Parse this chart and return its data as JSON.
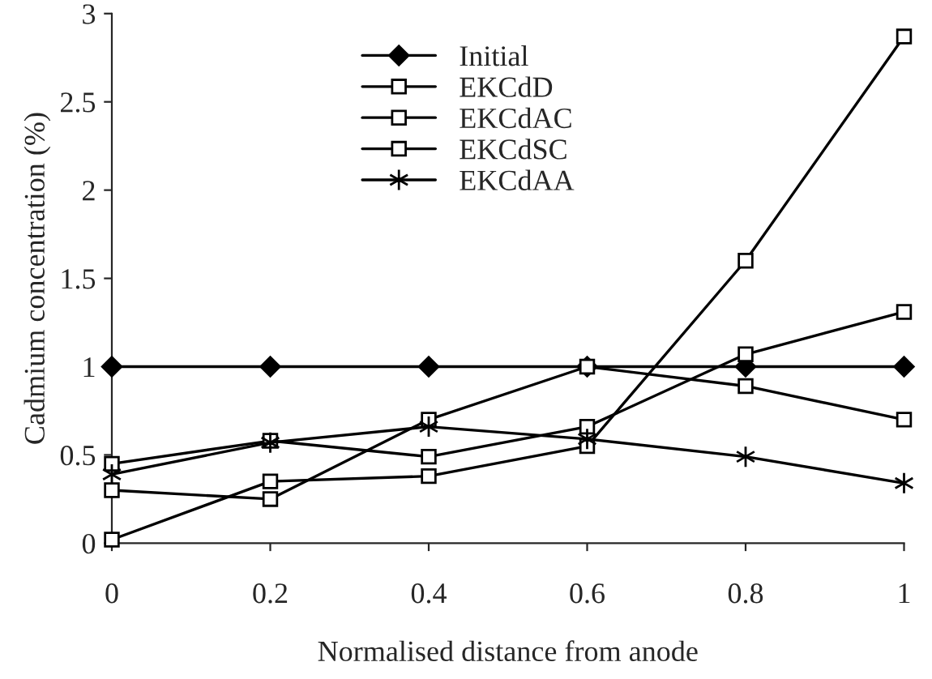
{
  "chart_data": {
    "type": "line",
    "xlabel": "Normalised distance from anode",
    "ylabel": "Cadmium concentration (%)",
    "x": [
      0,
      0.2,
      0.4,
      0.6,
      0.8,
      1
    ],
    "series": [
      {
        "name": "Initial",
        "color": "#000000",
        "marker": "diamond",
        "values": [
          1,
          1,
          1,
          1,
          1,
          1
        ]
      },
      {
        "name": "EKCdD",
        "color": "#000000",
        "marker": "square",
        "values": [
          0.02,
          0.35,
          0.38,
          0.55,
          1.6,
          2.87
        ]
      },
      {
        "name": "EKCdAC",
        "color": "#000000",
        "marker": "square",
        "values": [
          0.3,
          0.25,
          0.7,
          1.0,
          0.89,
          0.7
        ]
      },
      {
        "name": "EKCdSC",
        "color": "#000000",
        "marker": "square",
        "values": [
          0.45,
          0.58,
          0.49,
          0.66,
          1.07,
          1.31
        ]
      },
      {
        "name": "EKCdAA",
        "color": "#000000",
        "marker": "cross",
        "values": [
          0.39,
          0.57,
          0.66,
          0.59,
          0.49,
          0.34
        ]
      }
    ],
    "xlim": [
      0,
      1
    ],
    "xticks": [
      0,
      {
        "value": 0.2,
        "label": "0.2"
      },
      {
        "value": 0.4,
        "label": "0.4"
      },
      {
        "value": 0.6,
        "label": "0.6"
      },
      {
        "value": 0.8,
        "label": "0.8"
      },
      1
    ],
    "ylim": [
      0,
      3
    ],
    "yticks": [
      0,
      0.5,
      1,
      1.5,
      2,
      2.5,
      3
    ],
    "grid": false,
    "legend": "top",
    "line_style": "solid"
  }
}
